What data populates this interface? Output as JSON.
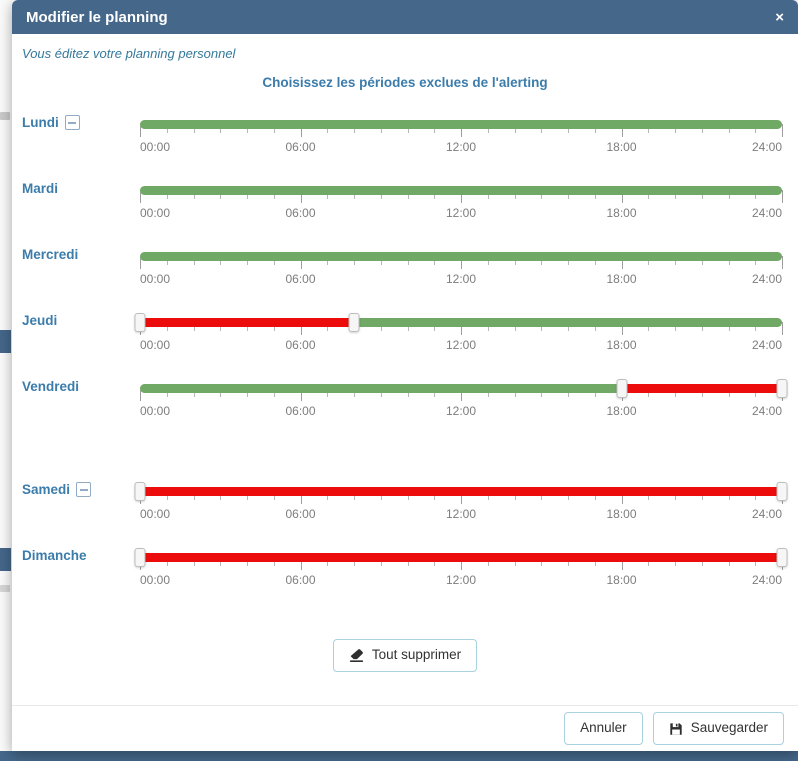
{
  "modal": {
    "title": "Modifier le planning",
    "close": "×",
    "subtitle": "Vous éditez votre planning personnel",
    "heading": "Choisissez les périodes exclues de l'alerting"
  },
  "slider": {
    "hours_total": 24,
    "time_labels": [
      "00:00",
      "06:00",
      "12:00",
      "18:00",
      "24:00"
    ]
  },
  "days": [
    {
      "label": "Lundi",
      "removable": true,
      "segments": [
        {
          "start": 0,
          "end": 24,
          "state": "included"
        }
      ],
      "handles": []
    },
    {
      "label": "Mardi",
      "removable": false,
      "segments": [
        {
          "start": 0,
          "end": 24,
          "state": "included"
        }
      ],
      "handles": []
    },
    {
      "label": "Mercredi",
      "removable": false,
      "segments": [
        {
          "start": 0,
          "end": 24,
          "state": "included"
        }
      ],
      "handles": []
    },
    {
      "label": "Jeudi",
      "removable": false,
      "segments": [
        {
          "start": 0,
          "end": 8,
          "state": "excluded"
        },
        {
          "start": 8,
          "end": 24,
          "state": "included"
        }
      ],
      "handles": [
        0,
        8
      ]
    },
    {
      "label": "Vendredi",
      "removable": false,
      "segments": [
        {
          "start": 0,
          "end": 18,
          "state": "included"
        },
        {
          "start": 18,
          "end": 24,
          "state": "excluded"
        }
      ],
      "handles": [
        18,
        24
      ],
      "extra_gap_after": true
    },
    {
      "label": "Samedi",
      "removable": true,
      "segments": [
        {
          "start": 0,
          "end": 24,
          "state": "excluded"
        }
      ],
      "handles": [
        0,
        24
      ]
    },
    {
      "label": "Dimanche",
      "removable": false,
      "segments": [
        {
          "start": 0,
          "end": 24,
          "state": "excluded"
        }
      ],
      "handles": [
        0,
        24
      ]
    }
  ],
  "buttons": {
    "clear_all": "Tout supprimer",
    "cancel": "Annuler",
    "save": "Sauvegarder"
  },
  "colors": {
    "header_bg": "#45678a",
    "accent_blue": "#3b7cab",
    "included_green": "#6fa965",
    "excluded_red": "#ec0c0c",
    "button_border": "#a8d2de"
  }
}
